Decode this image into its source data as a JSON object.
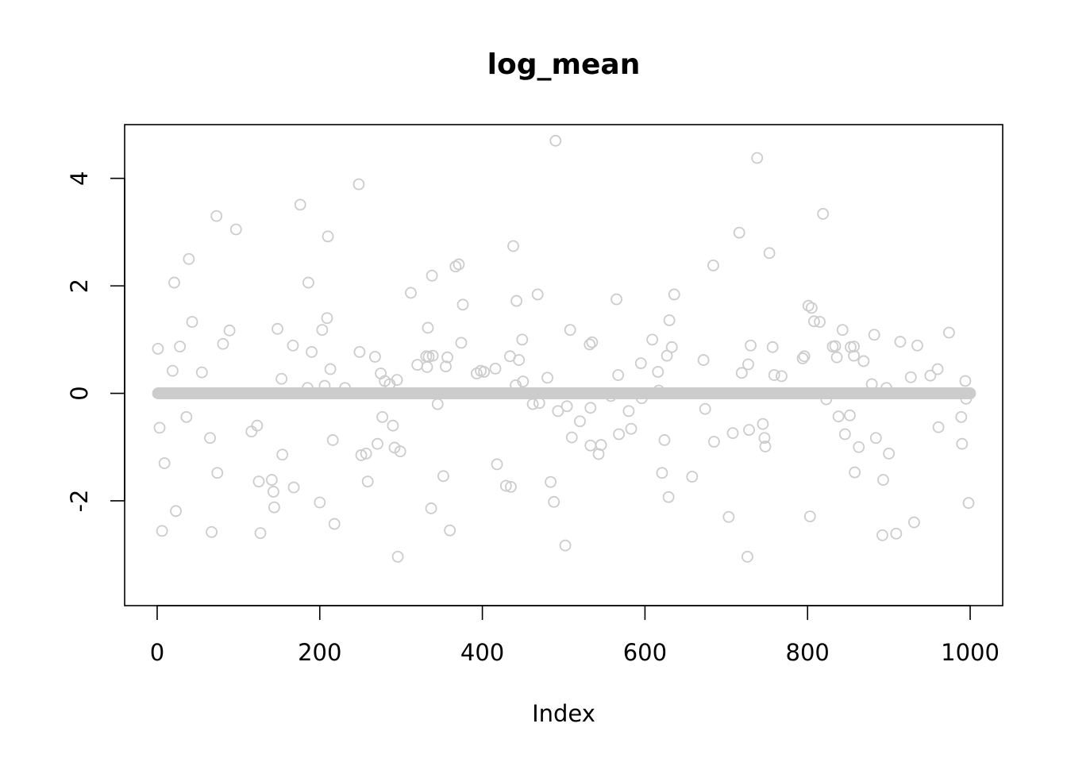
{
  "chart_data": {
    "type": "scatter",
    "title": "log_mean",
    "xlabel": "Index",
    "ylabel": "",
    "xlim": [
      -40,
      1040
    ],
    "ylim": [
      -3.95,
      5.0
    ],
    "x_ticks": [
      0,
      200,
      400,
      600,
      800,
      1000
    ],
    "y_ticks": [
      -2,
      0,
      2,
      4
    ],
    "x_tick_labels": [
      "0",
      "200",
      "400",
      "600",
      "800",
      "1000"
    ],
    "y_tick_labels": [
      "-2",
      "0",
      "2",
      "4"
    ],
    "point_color": "#cccccc",
    "marker": "open-circle",
    "baseline_value": 0,
    "baseline_note_n": 1000,
    "series": [
      {
        "x": [
          1,
          3,
          6,
          9,
          10,
          19,
          21,
          23,
          28,
          36,
          39,
          43,
          55,
          65,
          67,
          73,
          74,
          81,
          89,
          97,
          116,
          123,
          125,
          127,
          141,
          143,
          144,
          148,
          153,
          154,
          167,
          168,
          176,
          185,
          186,
          190,
          200,
          203,
          206,
          209,
          210,
          213,
          216,
          218,
          231,
          248,
          249,
          251,
          257,
          259,
          260,
          268,
          271,
          275,
          277,
          280,
          286,
          290,
          292,
          295,
          296,
          299,
          312,
          320,
          331,
          332,
          333,
          334,
          337,
          338,
          339,
          345,
          352,
          355,
          357,
          360,
          367,
          371,
          374,
          376,
          393,
          398,
          402,
          416,
          418,
          429,
          434,
          435,
          438,
          441,
          442,
          445,
          449,
          450,
          462,
          468,
          470,
          480,
          484,
          488,
          490,
          493,
          502,
          504,
          508,
          510,
          520,
          532,
          533,
          533,
          535,
          543,
          546,
          558,
          565,
          567,
          568,
          580,
          583,
          595,
          596,
          609,
          616,
          617,
          621,
          624,
          627,
          629,
          630,
          633,
          636,
          658,
          672,
          674,
          684,
          685,
          703,
          708,
          716,
          719,
          726,
          727,
          728,
          730,
          737,
          738,
          745,
          747,
          748,
          753,
          757,
          759,
          768,
          794,
          796,
          801,
          803,
          805,
          806,
          808,
          810,
          815,
          819,
          823,
          831,
          834,
          836,
          838,
          843,
          846,
          852,
          853,
          857,
          857,
          858,
          863,
          869,
          879,
          882,
          884,
          892,
          893,
          897,
          900,
          909,
          914,
          927,
          931,
          935,
          951,
          960,
          961,
          974,
          989,
          990,
          994,
          995,
          998,
          999
        ],
        "y": [
          0.83,
          -0.64,
          -2.56,
          -1.3,
          0.0,
          0.42,
          2.06,
          -2.19,
          0.87,
          -0.44,
          2.5,
          1.33,
          0.39,
          -0.83,
          -2.58,
          3.3,
          -1.48,
          0.92,
          1.17,
          3.05,
          -0.71,
          -0.6,
          -1.64,
          -2.6,
          -1.61,
          -1.83,
          -2.12,
          1.2,
          0.27,
          -1.14,
          0.89,
          -1.75,
          3.51,
          0.1,
          2.06,
          0.77,
          -2.03,
          1.18,
          0.14,
          1.4,
          2.92,
          0.45,
          -0.87,
          -2.43,
          0.1,
          3.89,
          0.77,
          -1.15,
          -1.12,
          -1.64,
          0.0,
          0.68,
          -0.94,
          0.37,
          -0.44,
          0.23,
          0.17,
          -0.6,
          -1.01,
          0.25,
          -3.04,
          -1.08,
          1.87,
          0.53,
          0.69,
          0.49,
          1.22,
          0.68,
          -2.14,
          2.19,
          0.7,
          -0.2,
          -1.54,
          0.5,
          0.67,
          -2.55,
          2.36,
          2.4,
          0.94,
          1.65,
          0.37,
          0.42,
          0.4,
          0.46,
          -1.32,
          -1.72,
          0.69,
          -1.74,
          2.74,
          0.15,
          1.72,
          0.62,
          1.0,
          0.22,
          -0.2,
          1.84,
          -0.18,
          0.29,
          -1.65,
          -2.02,
          4.7,
          -0.33,
          -2.83,
          -0.24,
          1.18,
          -0.82,
          -0.52,
          0.91,
          -0.27,
          -0.97,
          0.95,
          -1.13,
          -0.96,
          -0.05,
          1.75,
          0.34,
          -0.76,
          -0.33,
          -0.66,
          0.56,
          -0.09,
          1.0,
          0.4,
          0.05,
          -1.48,
          -0.87,
          0.7,
          -1.93,
          1.36,
          0.86,
          1.84,
          -1.55,
          0.62,
          -0.29,
          2.38,
          -0.9,
          -2.3,
          -0.74,
          2.99,
          0.38,
          -3.04,
          0.54,
          -0.68,
          0.89,
          0.0,
          4.38,
          -0.57,
          -0.83,
          -0.99,
          2.61,
          0.86,
          0.34,
          0.32,
          0.65,
          0.69,
          1.63,
          -2.29,
          1.59,
          0.0,
          1.34,
          0.0,
          1.33,
          3.34,
          -0.11,
          0.87,
          0.88,
          0.67,
          -0.43,
          1.18,
          -0.76,
          -0.41,
          0.86,
          0.87,
          0.7,
          -1.47,
          -1.0,
          0.6,
          0.17,
          1.09,
          -0.83,
          -2.64,
          -1.61,
          0.1,
          -1.12,
          -2.61,
          0.96,
          0.3,
          -2.4,
          0.89,
          0.33,
          0.45,
          -0.63,
          1.13,
          -0.44,
          -0.94,
          0.23,
          -0.1,
          -2.04,
          0.0
        ]
      }
    ]
  }
}
